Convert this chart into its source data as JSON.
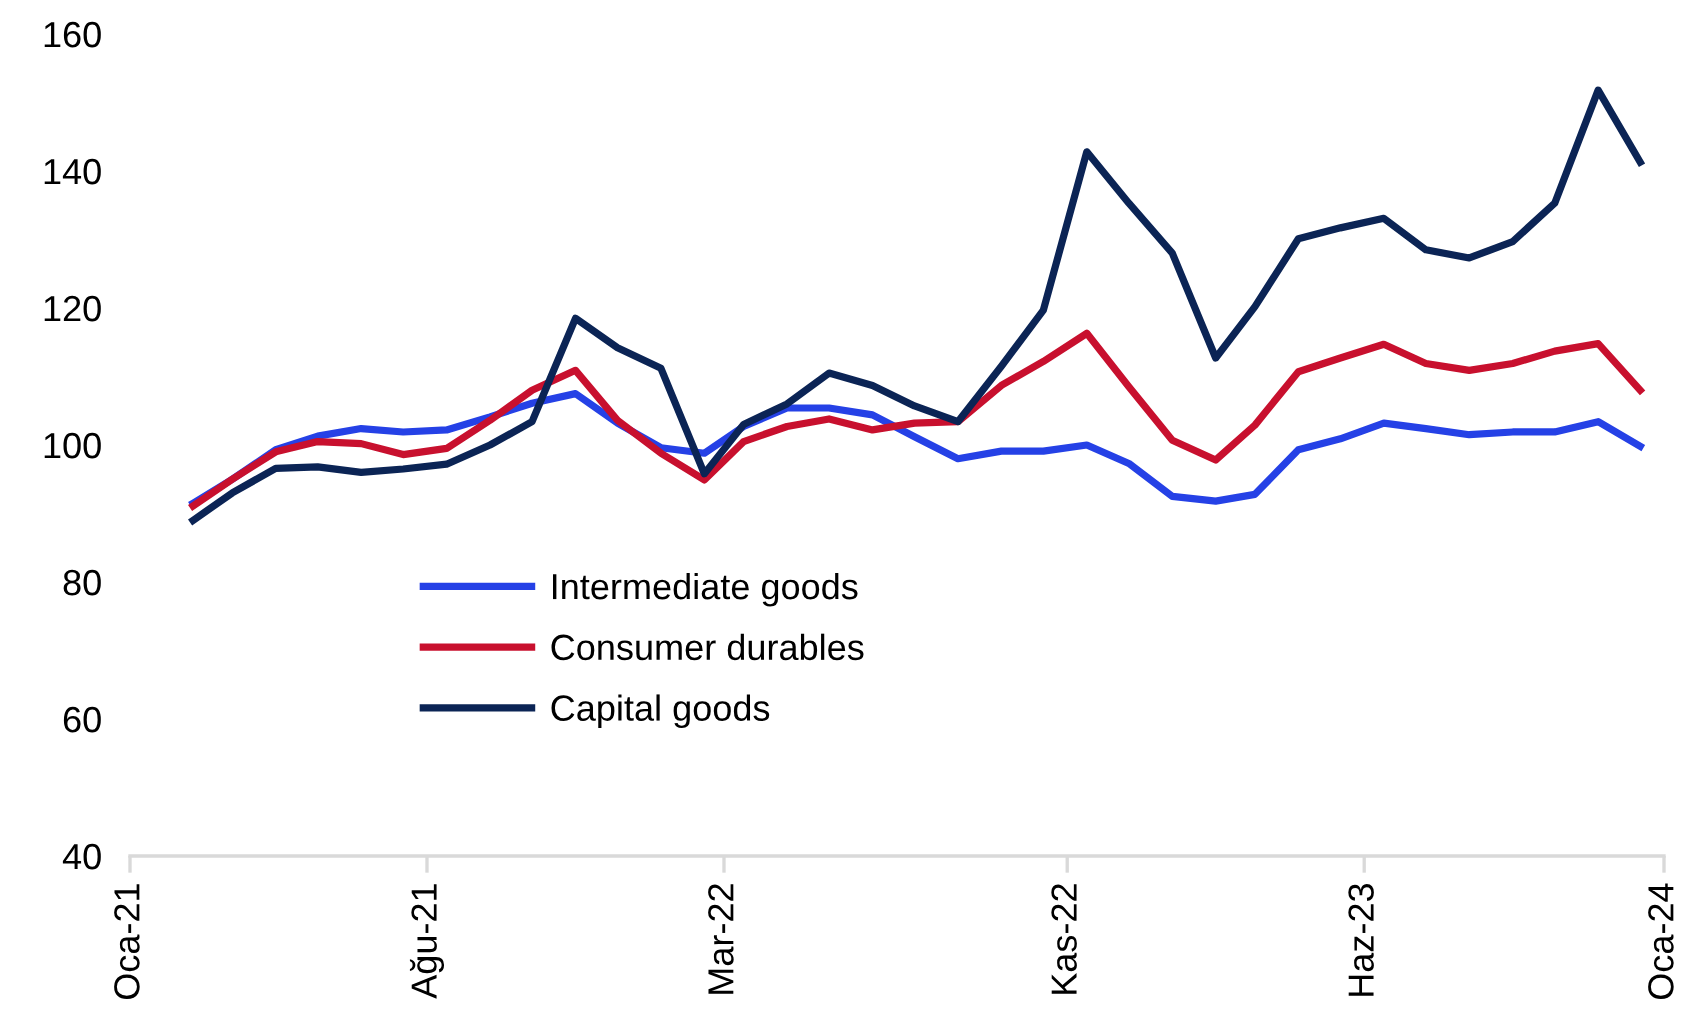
{
  "chart_data": {
    "type": "line",
    "x": [
      "2021-02-15",
      "2021-03-15",
      "2021-04-15",
      "2021-05-15",
      "2021-06-15",
      "2021-07-15",
      "2021-08-15",
      "2021-09-15",
      "2021-10-15",
      "2021-11-15",
      "2021-12-15",
      "2022-01-15",
      "2022-02-15",
      "2022-03-15",
      "2022-04-15",
      "2022-05-15",
      "2022-06-15",
      "2022-07-15",
      "2022-08-15",
      "2022-09-15",
      "2022-10-15",
      "2022-11-15",
      "2022-12-15",
      "2023-01-15",
      "2023-02-15",
      "2023-03-15",
      "2023-04-15",
      "2023-05-15",
      "2023-06-15",
      "2023-07-15",
      "2023-08-15",
      "2023-09-15",
      "2023-10-15",
      "2023-11-15",
      "2023-12-15"
    ],
    "series": [
      {
        "name": "Intermediate goods",
        "color": "#2541e6",
        "values": [
          91.5,
          95,
          99.3,
          101.3,
          102.4,
          101.9,
          102.2,
          104.1,
          106.1,
          107.5,
          103.2,
          99.6,
          98.8,
          102.7,
          105.4,
          105.4,
          104.4,
          101.2,
          98,
          99.1,
          99.1,
          100,
          97.3,
          92.5,
          91.8,
          92.8,
          99.3,
          100.9,
          103.2,
          102.4,
          101.5,
          101.9,
          101.9,
          103.4,
          99.8
        ]
      },
      {
        "name": "Consumer durables",
        "color": "#c8102e",
        "values": [
          91.1,
          95,
          99,
          100.5,
          100.2,
          98.6,
          99.5,
          103.6,
          108,
          110.9,
          103.6,
          98.8,
          94.9,
          100.5,
          102.7,
          103.8,
          102.2,
          103.2,
          103.4,
          108.7,
          112.2,
          116.3,
          108.5,
          100.7,
          97.8,
          102.9,
          110.7,
          112.7,
          114.7,
          111.9,
          110.9,
          111.9,
          113.7,
          114.8,
          108
        ]
      },
      {
        "name": "Capital goods",
        "color": "#0b2455",
        "values": [
          89,
          93,
          96.6,
          96.8,
          96,
          96.5,
          97.2,
          100,
          103.4,
          118.5,
          114.2,
          111.2,
          95.8,
          103,
          106,
          110.5,
          108.7,
          105.7,
          103.4,
          111.5,
          119.7,
          142.8,
          135.3,
          128,
          112.7,
          120.2,
          130.1,
          131.7,
          133.1,
          128.5,
          127.3,
          129.7,
          135.3,
          151.8,
          141.3
        ]
      }
    ],
    "xlim": [
      "2021-01-01",
      "2024-01-01"
    ],
    "xticks": [
      {
        "value": "2021-01-01",
        "label": "Oca-21"
      },
      {
        "value": "2021-08-01",
        "label": "Ağu-21"
      },
      {
        "value": "2022-03-01",
        "label": "Mar-22"
      },
      {
        "value": "2022-11-01",
        "label": "Kas-22"
      },
      {
        "value": "2023-06-01",
        "label": "Haz-23"
      },
      {
        "value": "2024-01-01",
        "label": "Oca-24"
      }
    ],
    "ylim": [
      40,
      160
    ],
    "yticks": [
      40,
      60,
      80,
      100,
      120,
      140,
      160
    ],
    "grid": false,
    "legend": "center left",
    "marker": "none",
    "line_style": "solid"
  }
}
